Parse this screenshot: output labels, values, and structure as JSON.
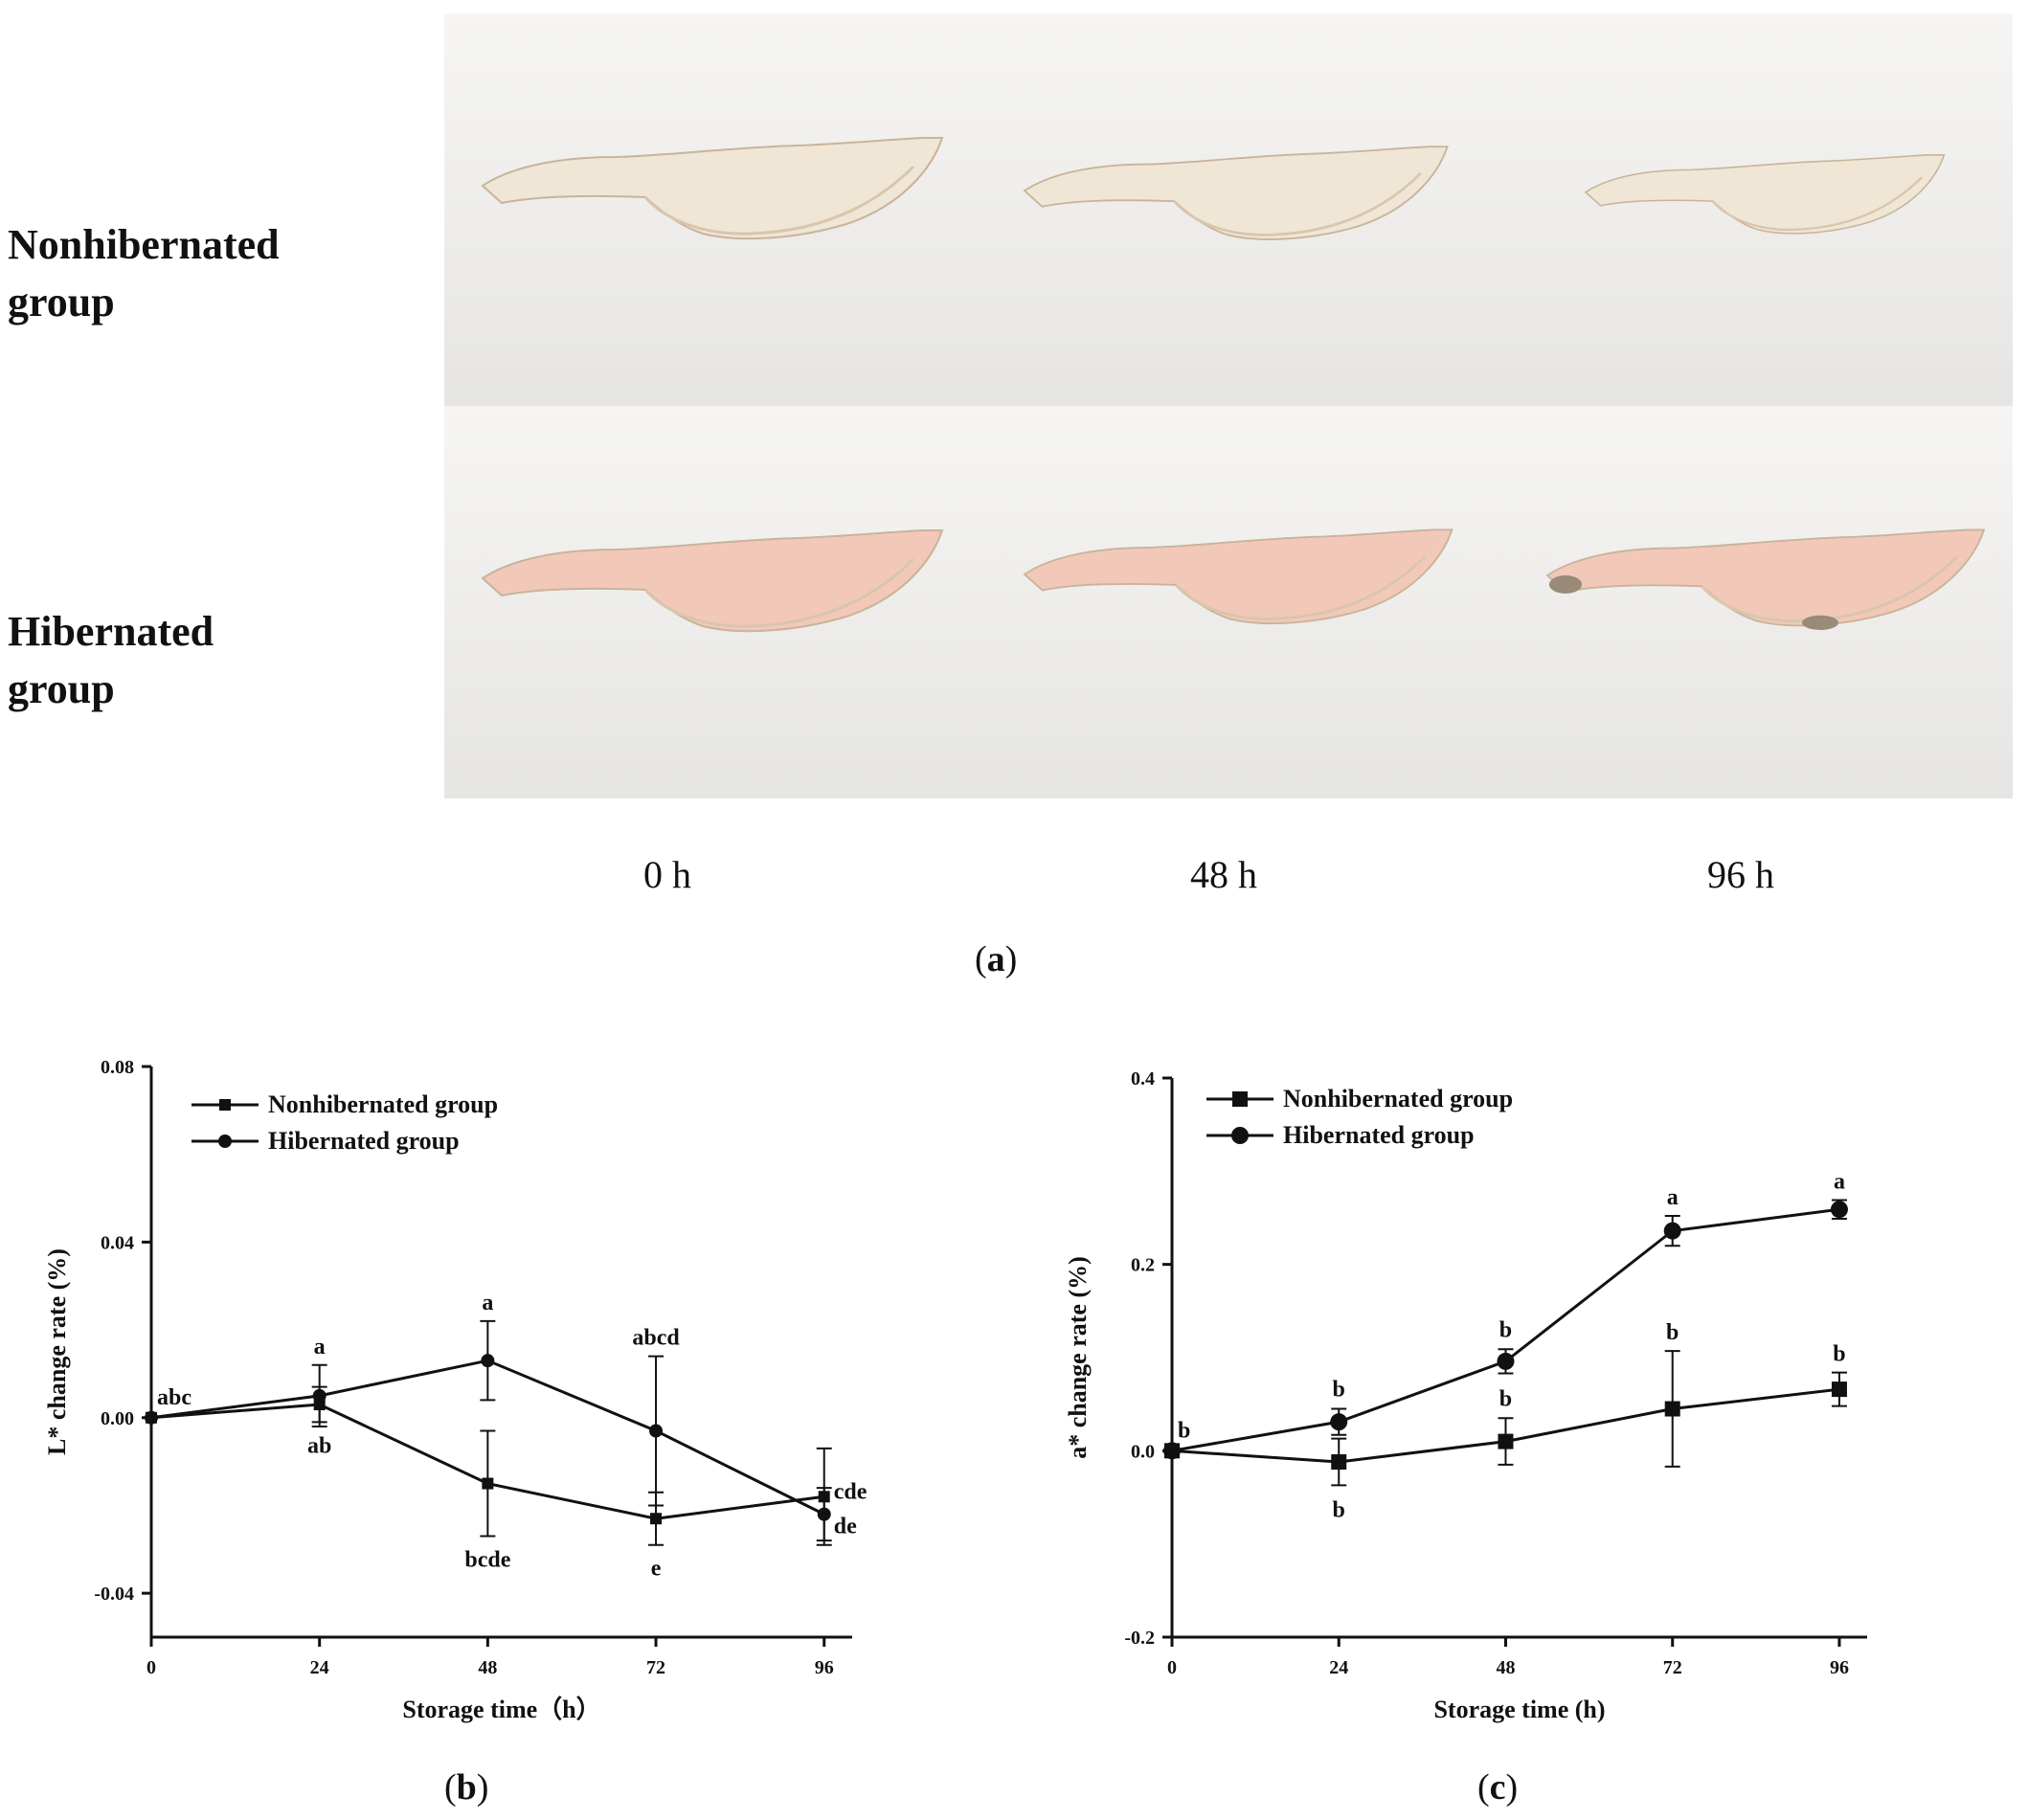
{
  "figure": {
    "rows": [
      {
        "label_line1": "Nonhibernated",
        "label_line2": "group"
      },
      {
        "label_line1": "Hibernated",
        "label_line2": "group"
      }
    ],
    "columns": [
      "0 h",
      "48 h",
      "96 h"
    ],
    "panel_a": "a",
    "panel_b": "b",
    "panel_c": "c"
  },
  "colors": {
    "series": "#111111",
    "photo_bg_top": "#f6f5f3",
    "photo_bg_bottom": "#e6e5e3",
    "fillet_light": "#efe6d6",
    "fillet_pink": "#f2c8b8",
    "fillet_dark": "#9a8a78"
  },
  "chart_data": [
    {
      "type": "line",
      "title": "",
      "xlabel": "Storage time（h）",
      "ylabel": "L* change rate (%)",
      "x": [
        0,
        24,
        48,
        72,
        96
      ],
      "xticks": [
        "0",
        "24",
        "48",
        "72",
        "96"
      ],
      "xlim": [
        0,
        100
      ],
      "ylim": [
        -0.05,
        0.08
      ],
      "yticks": [
        -0.04,
        0.0,
        0.04,
        0.08
      ],
      "ytick_labels": [
        "-0.04",
        "0.00",
        "0.04",
        "0.08"
      ],
      "legend_position": "top-left",
      "series": [
        {
          "name": "Nonhibernated group",
          "marker": "square",
          "values": [
            0.0,
            0.003,
            -0.015,
            -0.023,
            -0.018
          ],
          "errors": [
            0.0,
            0.004,
            0.012,
            0.006,
            0.011
          ]
        },
        {
          "name": "Hibernated group",
          "marker": "circle",
          "values": [
            0.0,
            0.005,
            0.013,
            -0.003,
            -0.022
          ],
          "errors": [
            0.0,
            0.007,
            0.009,
            0.017,
            0.006
          ]
        }
      ],
      "annotations": [
        {
          "text": "abc",
          "x": 0,
          "y": 0.0,
          "pos": "above-right"
        },
        {
          "text": "a",
          "x": 24,
          "y": 0.012,
          "pos": "above"
        },
        {
          "text": "ab",
          "x": 24,
          "y": -0.001,
          "pos": "below"
        },
        {
          "text": "a",
          "x": 48,
          "y": 0.022,
          "pos": "above"
        },
        {
          "text": "bcde",
          "x": 48,
          "y": -0.027,
          "pos": "below"
        },
        {
          "text": "abcd",
          "x": 72,
          "y": 0.014,
          "pos": "above"
        },
        {
          "text": "e",
          "x": 72,
          "y": -0.029,
          "pos": "below"
        },
        {
          "text": "cde",
          "x": 96,
          "y": -0.018,
          "pos": "right"
        },
        {
          "text": "de",
          "x": 96,
          "y": -0.022,
          "pos": "right-below"
        }
      ]
    },
    {
      "type": "line",
      "title": "",
      "xlabel": "Storage time (h)",
      "ylabel": "a* change rate (%)",
      "x": [
        0,
        24,
        48,
        72,
        96
      ],
      "xticks": [
        "0",
        "24",
        "48",
        "72",
        "96"
      ],
      "xlim": [
        0,
        100
      ],
      "ylim": [
        -0.2,
        0.4
      ],
      "yticks": [
        -0.2,
        0.0,
        0.2,
        0.4
      ],
      "ytick_labels": [
        "-0.2",
        "0.0",
        "0.2",
        "0.4"
      ],
      "legend_position": "top-left",
      "series": [
        {
          "name": "Nonhibernated group",
          "marker": "square",
          "values": [
            0.0,
            -0.012,
            0.01,
            0.045,
            0.066
          ],
          "errors": [
            0.0,
            0.025,
            0.025,
            0.062,
            0.018
          ]
        },
        {
          "name": "Hibernated group",
          "marker": "circle",
          "values": [
            0.0,
            0.031,
            0.096,
            0.236,
            0.259
          ],
          "errors": [
            0.0,
            0.014,
            0.013,
            0.016,
            0.01
          ]
        }
      ],
      "annotations": [
        {
          "text": "b",
          "x": 0,
          "y": 0.0,
          "pos": "above-right"
        },
        {
          "text": "b",
          "x": 24,
          "y": 0.046,
          "pos": "above"
        },
        {
          "text": "b",
          "x": 24,
          "y": -0.038,
          "pos": "below"
        },
        {
          "text": "b",
          "x": 48,
          "y": 0.11,
          "pos": "above"
        },
        {
          "text": "b",
          "x": 48,
          "y": 0.036,
          "pos": "above"
        },
        {
          "text": "a",
          "x": 72,
          "y": 0.252,
          "pos": "above"
        },
        {
          "text": "b",
          "x": 72,
          "y": 0.107,
          "pos": "above"
        },
        {
          "text": "a",
          "x": 96,
          "y": 0.269,
          "pos": "above"
        },
        {
          "text": "b",
          "x": 96,
          "y": 0.084,
          "pos": "above"
        }
      ]
    }
  ]
}
